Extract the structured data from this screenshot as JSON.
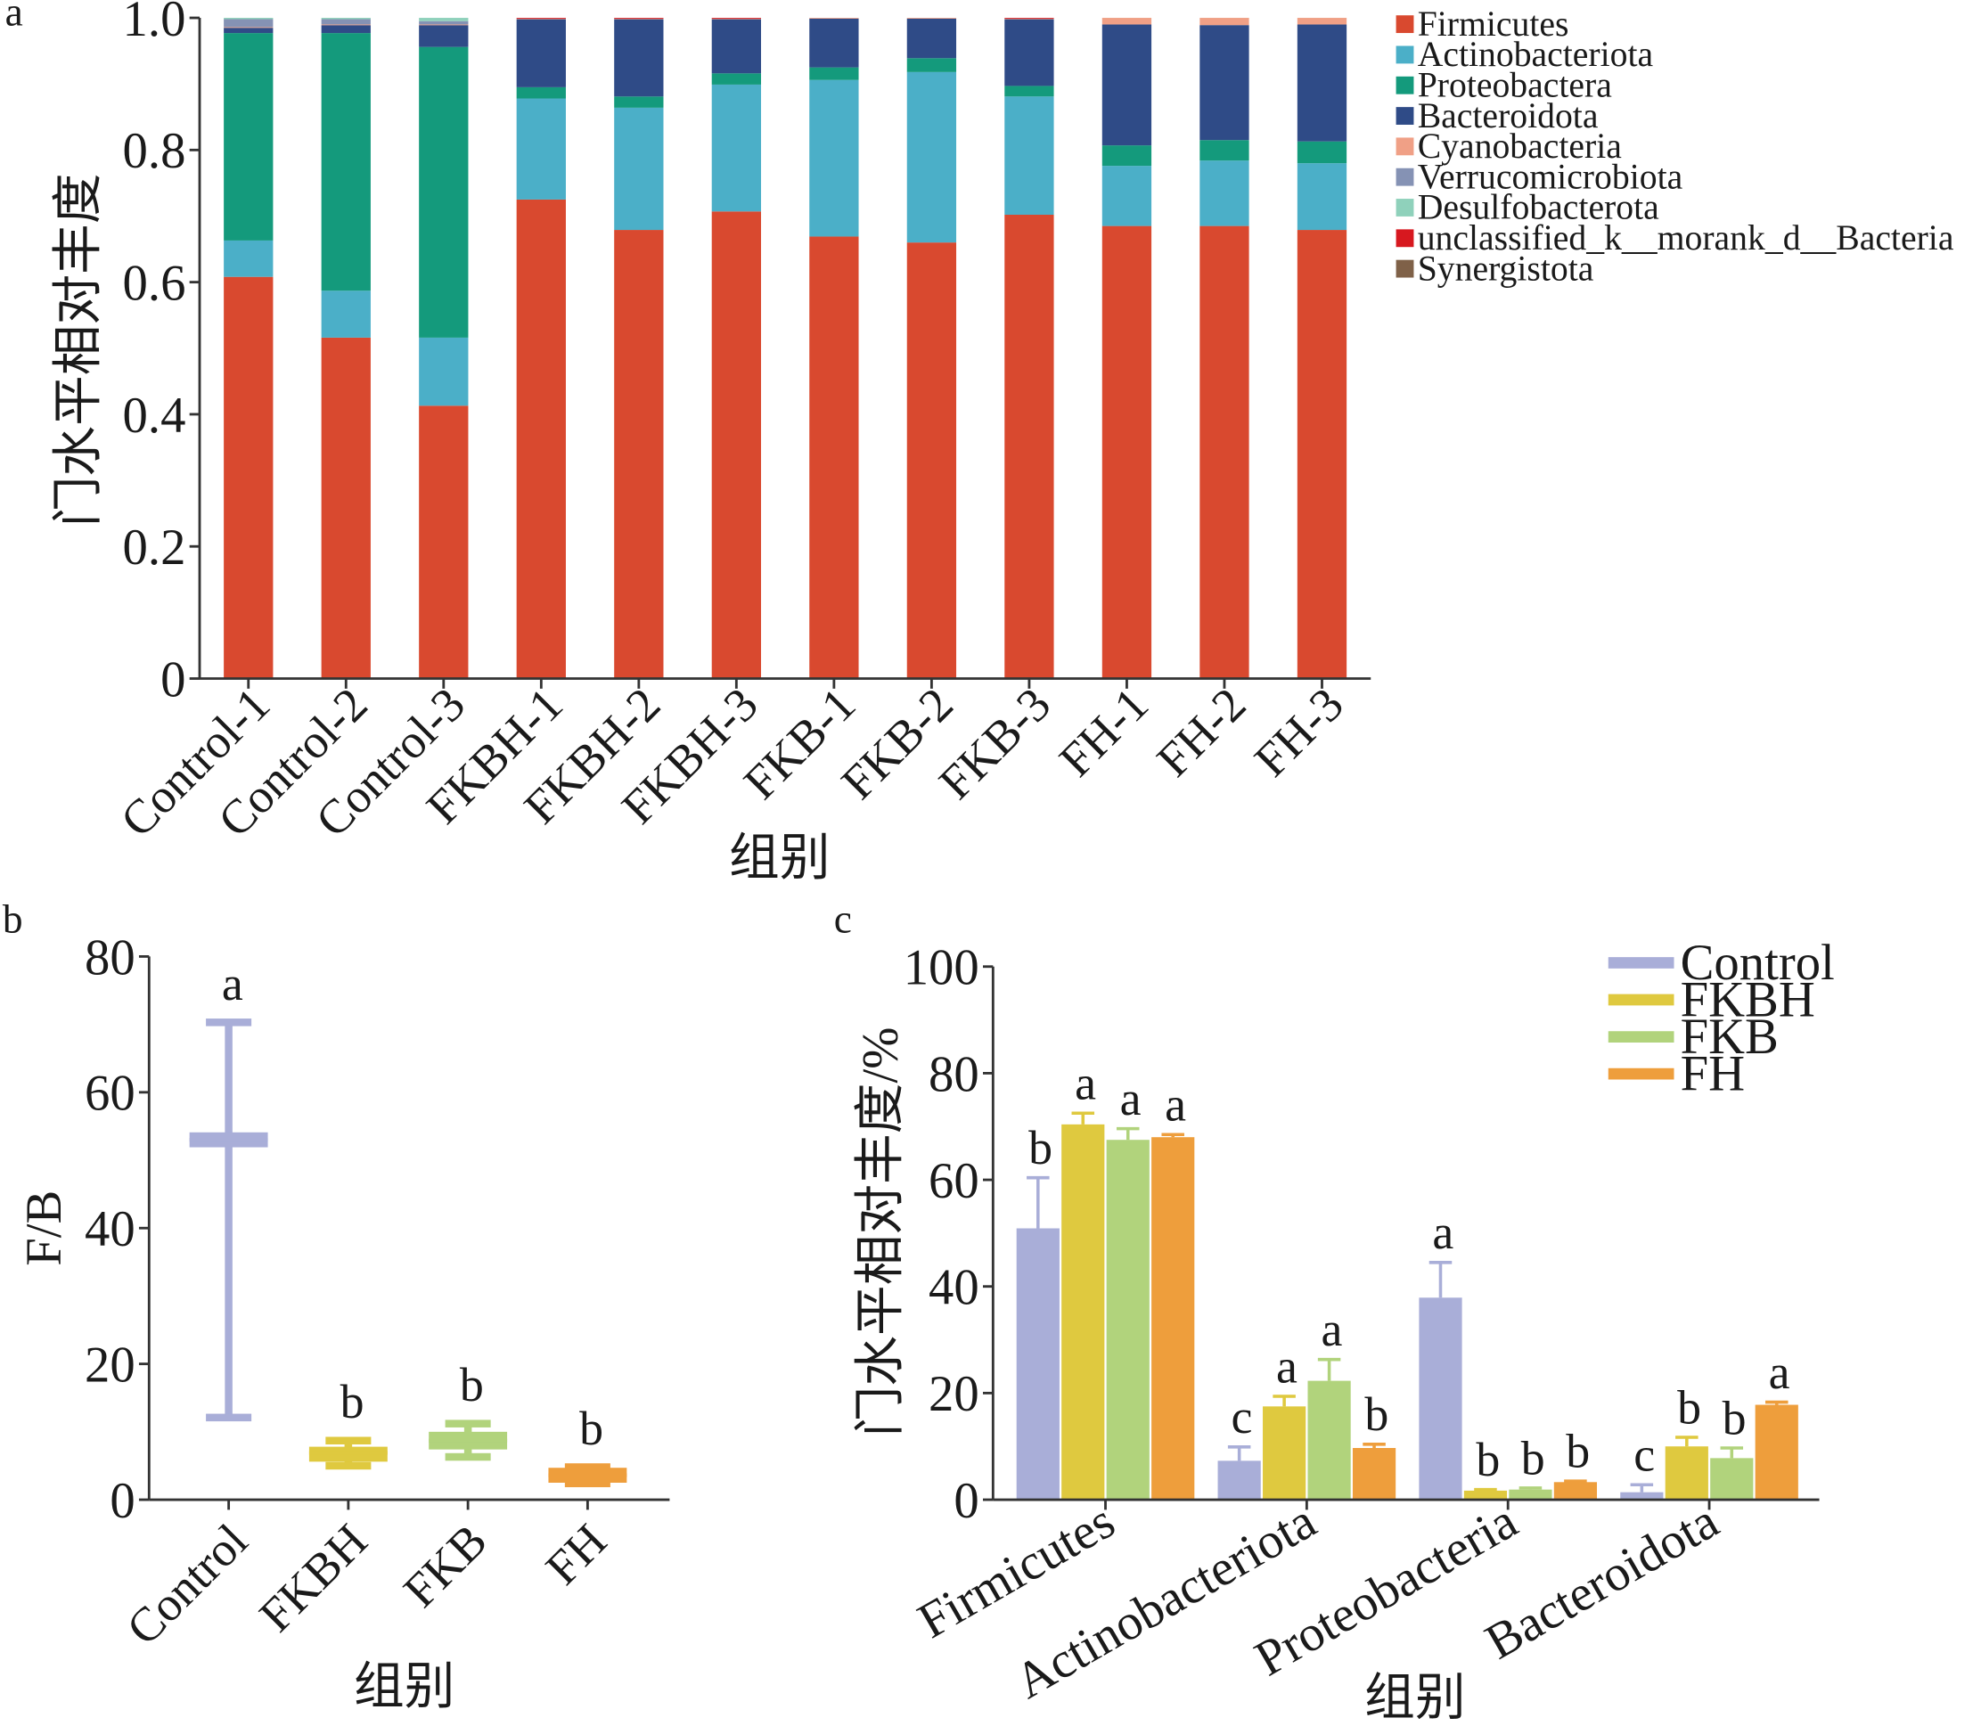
{
  "chart_data": [
    {
      "type": "bar",
      "stacked": true,
      "panel_label": "a",
      "categories": [
        "Control-1",
        "Control-2",
        "Control-3",
        "FKBH-1",
        "FKBH-2",
        "FKBH-3",
        "FKB-1",
        "FKB-2",
        "FKB-3",
        "FH-1",
        "FH-2",
        "FH-3"
      ],
      "series": [
        {
          "name": "Firmicutes",
          "color": "#d9492f",
          "values": [
            0.608,
            0.516,
            0.413,
            0.725,
            0.679,
            0.707,
            0.669,
            0.66,
            0.702,
            0.685,
            0.685,
            0.679
          ]
        },
        {
          "name": "Actinobacteriota",
          "color": "#4bafc8",
          "values": [
            0.055,
            0.071,
            0.103,
            0.153,
            0.185,
            0.192,
            0.237,
            0.258,
            0.179,
            0.091,
            0.099,
            0.101
          ]
        },
        {
          "name": "Proteobactera",
          "color": "#149a7c",
          "values": [
            0.314,
            0.39,
            0.44,
            0.017,
            0.017,
            0.017,
            0.019,
            0.021,
            0.016,
            0.031,
            0.031,
            0.033
          ]
        },
        {
          "name": "Bacteroidota",
          "color": "#2f4b87",
          "values": [
            0.008,
            0.012,
            0.033,
            0.103,
            0.117,
            0.082,
            0.074,
            0.06,
            0.101,
            0.183,
            0.174,
            0.177
          ]
        },
        {
          "name": "Cyanobacteria",
          "color": "#f0a086",
          "values": [
            0.001,
            0.001,
            0.001,
            0.001,
            0.001,
            0.001,
            0.001,
            0.001,
            0.001,
            0.01,
            0.011,
            0.01
          ]
        },
        {
          "name": "Verrucomicrobiota",
          "color": "#8592b4",
          "values": [
            0.012,
            0.008,
            0.005,
            0,
            0,
            0,
            0,
            0,
            0,
            0,
            0,
            0
          ]
        },
        {
          "name": "Desulfobacterota",
          "color": "#8fd1bb",
          "values": [
            0.002,
            0.002,
            0.005,
            0,
            0,
            0,
            0,
            0,
            0,
            0,
            0,
            0
          ]
        },
        {
          "name": "unclassified_k__morank_d__Bacteria",
          "color": "#d7181f",
          "values": [
            0,
            0,
            0,
            0.001,
            0.001,
            0.001,
            0,
            0,
            0.001,
            0,
            0,
            0
          ]
        },
        {
          "name": "Synergistota",
          "color": "#7f6148",
          "values": [
            0,
            0,
            0,
            0,
            0,
            0,
            0,
            0,
            0,
            0,
            0,
            0
          ]
        }
      ],
      "xlabel": "组别",
      "ylabel": "门水平相对丰度",
      "ylim": [
        0,
        1.0
      ],
      "yticks": [
        0,
        0.2,
        0.4,
        0.6,
        0.8,
        1.0
      ],
      "ytick_labels": [
        "0",
        "0.2",
        "0.4",
        "0.6",
        "0.8",
        "1.0"
      ],
      "legend": "right",
      "grid": false
    },
    {
      "type": "box",
      "panel_label": "b",
      "categories": [
        "Control",
        "FKBH",
        "FKB",
        "FH"
      ],
      "colors": [
        "#a9aed8",
        "#dfc93f",
        "#b1d37c",
        "#ee9e3c"
      ],
      "boxes": [
        {
          "min": 12.1,
          "q1": 51.9,
          "median": 53.0,
          "q3": 54.1,
          "max": 70.3,
          "letter": "a"
        },
        {
          "min": 5.0,
          "q1": 5.6,
          "median": 6.9,
          "q3": 7.8,
          "max": 8.7,
          "letter": "b"
        },
        {
          "min": 6.3,
          "q1": 7.4,
          "median": 8.7,
          "q3": 10.0,
          "max": 11.2,
          "letter": "b"
        },
        {
          "min": 2.4,
          "q1": 2.5,
          "median": 3.6,
          "q3": 4.7,
          "max": 4.8,
          "letter": "b"
        }
      ],
      "xlabel": "组别",
      "ylabel": "F/B",
      "ylim": [
        0,
        80
      ],
      "yticks": [
        0,
        20,
        40,
        60,
        80
      ],
      "ytick_labels": [
        "0",
        "20",
        "40",
        "60",
        "80"
      ],
      "grid": false
    },
    {
      "type": "bar",
      "panel_label": "c",
      "categories": [
        "Firmicutes",
        "Actinobacteriota",
        "Proteobacteria",
        "Bacteroidota"
      ],
      "series": [
        {
          "name": "Control",
          "color": "#a9aed8",
          "values": [
            50.9,
            7.3,
            37.9,
            1.4
          ],
          "errors": [
            9.5,
            2.6,
            6.6,
            1.4
          ],
          "letters": [
            "b",
            "c",
            "a",
            "c"
          ]
        },
        {
          "name": "FKBH",
          "color": "#dfc93f",
          "values": [
            70.4,
            17.5,
            1.7,
            10.0
          ],
          "errors": [
            2.1,
            1.9,
            0.2,
            1.7
          ],
          "letters": [
            "a",
            "a",
            "b",
            "b"
          ]
        },
        {
          "name": "FKB",
          "color": "#b1d37c",
          "values": [
            67.5,
            22.3,
            1.9,
            7.8
          ],
          "errors": [
            2.1,
            4.0,
            0.3,
            1.9
          ],
          "letters": [
            "a",
            "a",
            "b",
            "b"
          ]
        },
        {
          "name": "FH",
          "color": "#ee9e3c",
          "values": [
            68.0,
            9.7,
            3.3,
            17.8
          ],
          "errors": [
            0.5,
            0.7,
            0.2,
            0.5
          ],
          "letters": [
            "a",
            "b",
            "b",
            "a"
          ]
        }
      ],
      "xlabel": "组别",
      "ylabel": "门水平相对丰度/%",
      "ylim": [
        0,
        100
      ],
      "yticks": [
        0,
        20,
        40,
        60,
        80,
        100
      ],
      "ytick_labels": [
        "0",
        "20",
        "40",
        "60",
        "80",
        "100"
      ],
      "legend": "top-right",
      "grid": false
    }
  ]
}
